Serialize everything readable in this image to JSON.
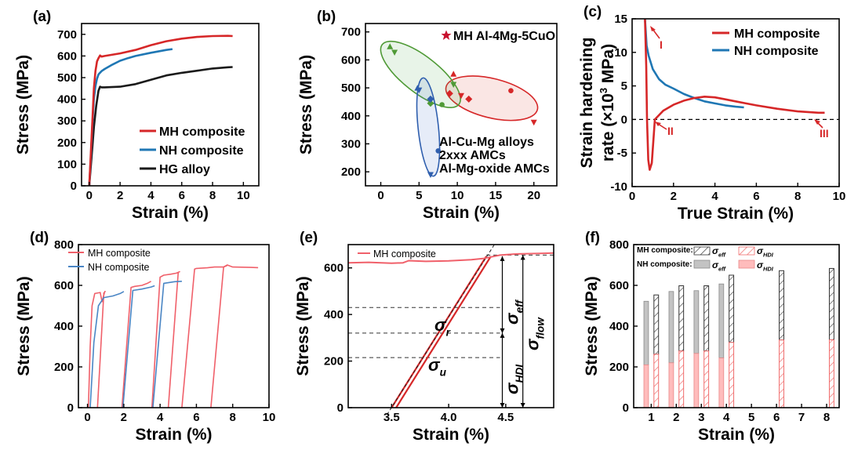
{
  "chart_data": [
    {
      "panel": "(a)",
      "type": "line",
      "xlabel": "Strain (%)",
      "ylabel": "Stress (MPa)",
      "xlim": [
        -0.5,
        11
      ],
      "ylim": [
        0,
        750
      ],
      "xticks": [
        "0",
        "2",
        "4",
        "6",
        "8",
        "10"
      ],
      "yticks": [
        "0",
        "100",
        "200",
        "300",
        "400",
        "500",
        "600",
        "700"
      ],
      "legend_position": "lower-right",
      "series": [
        {
          "name": "MH composite",
          "color": "#d62728",
          "x": [
            0,
            0.1,
            0.2,
            0.3,
            0.4,
            0.5,
            0.6,
            0.7,
            0.8,
            1.0,
            2,
            3,
            4,
            5,
            6,
            7,
            8,
            9,
            9.3
          ],
          "y": [
            0,
            150,
            300,
            450,
            530,
            575,
            590,
            602,
            597,
            600,
            612,
            628,
            650,
            668,
            680,
            688,
            692,
            693,
            692
          ]
        },
        {
          "name": "NH composite",
          "color": "#1f77b4",
          "x": [
            0,
            0.1,
            0.2,
            0.3,
            0.4,
            0.5,
            0.6,
            0.8,
            1.0,
            1.5,
            2.0,
            2.5,
            3,
            4,
            5,
            5.4
          ],
          "y": [
            0,
            130,
            280,
            400,
            460,
            495,
            515,
            530,
            540,
            560,
            578,
            590,
            600,
            615,
            628,
            632
          ]
        },
        {
          "name": "HG alloy",
          "color": "#1a1a1a",
          "x": [
            0,
            0.1,
            0.2,
            0.3,
            0.45,
            0.6,
            0.7,
            0.8,
            1.0,
            2,
            3,
            4,
            5,
            6,
            7,
            8,
            9,
            9.3
          ],
          "y": [
            0,
            90,
            180,
            270,
            370,
            440,
            458,
            455,
            455,
            458,
            470,
            490,
            510,
            522,
            532,
            542,
            548,
            549
          ]
        }
      ]
    },
    {
      "panel": "(b)",
      "type": "scatter",
      "xlabel": "Strain (%)",
      "ylabel": "Stress (MPa)",
      "xlim": [
        -2,
        23
      ],
      "ylim": [
        150,
        730
      ],
      "xticks": [
        "0",
        "5",
        "10",
        "15",
        "20"
      ],
      "yticks": [
        "200",
        "300",
        "400",
        "500",
        "600",
        "700"
      ],
      "star_label": "MH Al-4Mg-5CuO",
      "group_labels": [
        {
          "text": "Al-Cu-Mg alloys",
          "color": "#d62728"
        },
        {
          "text": "2xxx AMCs",
          "color": "#4f9a36"
        },
        {
          "text": "Al-Mg-oxide AMCs",
          "color": "#2f5fae"
        }
      ],
      "groups": [
        {
          "name": "Al-Cu-Mg alloys",
          "color": "#d62728",
          "points": [
            [
              9.5,
              550
            ],
            [
              10.5,
              470
            ],
            [
              11.5,
              460
            ],
            [
              17,
              490
            ],
            [
              20,
              375
            ],
            [
              9,
              480
            ]
          ]
        },
        {
          "name": "2xxx AMCs",
          "color": "#4f9a36",
          "points": [
            [
              1.2,
              648
            ],
            [
              1.8,
              625
            ],
            [
              6.5,
              445
            ],
            [
              8,
              440
            ],
            [
              9.5,
              510
            ]
          ]
        },
        {
          "name": "Al-Mg-oxide AMCs",
          "color": "#2f5fae",
          "points": [
            [
              4.8,
              500
            ],
            [
              5,
              490
            ],
            [
              6.5,
              460
            ],
            [
              7.5,
              275
            ],
            [
              6.5,
              188
            ]
          ]
        }
      ]
    },
    {
      "panel": "(c)",
      "type": "line",
      "xlabel": "True Strain (%)",
      "ylabel": "Strain hardening rate (×10³ MPa)",
      "ylabel_line1": "Strain hardening",
      "ylabel_line2": "rate (×10",
      "ylabel_sup": "3",
      "ylabel_tail": " MPa)",
      "xlim": [
        0,
        10
      ],
      "ylim": [
        -10,
        15
      ],
      "xticks": [
        "0",
        "2",
        "4",
        "6",
        "8",
        "10"
      ],
      "yticks": [
        "-10",
        "-5",
        "0",
        "5",
        "10",
        "15"
      ],
      "legend_position": "top-right",
      "annotations": [
        "I",
        "II",
        "III"
      ],
      "series": [
        {
          "name": "MH composite",
          "color": "#d62728",
          "x": [
            0.62,
            0.68,
            0.72,
            0.78,
            0.85,
            0.95,
            1.1,
            1.5,
            2,
            2.5,
            3,
            3.5,
            4,
            4.5,
            5,
            5.5,
            6,
            7,
            8,
            9,
            9.3
          ],
          "y": [
            15,
            8,
            0,
            -6,
            -7.5,
            -6.5,
            0,
            1.3,
            2.2,
            2.8,
            3.2,
            3.4,
            3.3,
            3.0,
            2.7,
            2.4,
            2.1,
            1.6,
            1.2,
            1.0,
            1.0
          ]
        },
        {
          "name": "NH composite",
          "color": "#1f77b4",
          "x": [
            0.62,
            0.7,
            0.8,
            1.0,
            1.3,
            1.6,
            2.0,
            2.5,
            3,
            3.5,
            4,
            4.5,
            5,
            5.4
          ],
          "y": [
            15,
            11,
            9.5,
            7.5,
            6,
            5.2,
            4.6,
            3.8,
            3.2,
            2.7,
            2.4,
            2.1,
            1.9,
            1.8
          ]
        }
      ]
    },
    {
      "panel": "(d)",
      "type": "line",
      "xlabel": "Strain (%)",
      "ylabel": "Stress (MPa)",
      "xlim": [
        -0.5,
        10
      ],
      "ylim": [
        0,
        800
      ],
      "xticks": [
        "0",
        "2",
        "4",
        "6",
        "8",
        "10"
      ],
      "yticks": [
        "0",
        "200",
        "400",
        "600",
        "800"
      ],
      "legend_position": "top-left",
      "series": [
        {
          "name": "MH composite",
          "color": "#f0606a",
          "segments": [
            [
              [
                0.05,
                0
              ],
              [
                0.15,
                300
              ],
              [
                0.25,
                500
              ],
              [
                0.4,
                560
              ],
              [
                0.7,
                565
              ],
              [
                0.8,
                520
              ],
              [
                0.95,
                570
              ],
              [
                1.0,
                570
              ]
            ],
            [
              [
                0.55,
                0
              ],
              [
                0.9,
                565
              ]
            ],
            [
              [
                1.9,
                0
              ],
              [
                2.4,
                590
              ],
              [
                2.6,
                595
              ],
              [
                3.0,
                600
              ],
              [
                3.3,
                610
              ],
              [
                3.5,
                620
              ]
            ],
            [
              [
                3.55,
                0
              ],
              [
                4.0,
                640
              ],
              [
                4.2,
                650
              ],
              [
                4.6,
                655
              ],
              [
                4.9,
                660
              ],
              [
                5.1,
                668
              ]
            ],
            [
              [
                4.45,
                0
              ],
              [
                5.0,
                665
              ]
            ],
            [
              [
                5.2,
                0
              ],
              [
                5.9,
                680
              ],
              [
                6.0,
                683
              ],
              [
                6.6,
                686
              ],
              [
                7.0,
                690
              ],
              [
                7.5,
                690
              ],
              [
                7.7,
                698
              ]
            ],
            [
              [
                6.8,
                0
              ],
              [
                7.5,
                690
              ],
              [
                7.7,
                700
              ],
              [
                8.0,
                690
              ],
              [
                9.0,
                688
              ],
              [
                9.4,
                687
              ]
            ]
          ]
        },
        {
          "name": "NH composite",
          "color": "#4a86c5",
          "segments": [
            [
              [
                0.15,
                0
              ],
              [
                0.35,
                320
              ],
              [
                0.6,
                500
              ],
              [
                0.9,
                540
              ],
              [
                1.4,
                548
              ],
              [
                1.8,
                560
              ],
              [
                2.0,
                570
              ]
            ],
            [
              [
                1.95,
                0
              ],
              [
                2.5,
                575
              ],
              [
                3.0,
                582
              ],
              [
                3.5,
                592
              ],
              [
                3.7,
                598
              ]
            ],
            [
              [
                3.6,
                0
              ],
              [
                4.2,
                610
              ],
              [
                4.8,
                618
              ],
              [
                5.2,
                620
              ]
            ]
          ]
        }
      ]
    },
    {
      "panel": "(e)",
      "type": "line",
      "xlabel": "Strain (%)",
      "ylabel": "Stress (MPa)",
      "xlim": [
        3.12,
        4.92
      ],
      "ylim": [
        0,
        700
      ],
      "xticks": [
        "3.5",
        "4.0",
        "4.5"
      ],
      "yticks": [
        "0",
        "200",
        "400",
        "600"
      ],
      "legend_position": "top-left",
      "series": [
        {
          "name": "MH composite",
          "color": "#f0606a",
          "x": [
            3.12,
            3.3,
            3.5,
            3.6,
            3.65,
            3.8,
            4.0,
            4.2,
            4.3,
            4.45,
            4.6,
            4.8,
            4.92
          ],
          "y": [
            622,
            624,
            620,
            622,
            631,
            628,
            630,
            635,
            640,
            655,
            660,
            662,
            664
          ]
        }
      ],
      "unload_line": {
        "x": [
          3.5,
          4.33
        ],
        "y": [
          0,
          650
        ]
      },
      "reload_line": {
        "x": [
          3.54,
          4.37
        ],
        "y": [
          0,
          650
        ]
      },
      "levels": [
        {
          "name": "sigma_r",
          "value": 430
        },
        {
          "name": "sigma_b",
          "value": 320
        },
        {
          "name": "sigma_u",
          "value": 215
        }
      ],
      "labels": {
        "sigma_r_base": "σ",
        "sigma_r_sub": "r",
        "sigma_u_base": "σ",
        "sigma_u_sub": "u",
        "sigma_eff_base": "σ",
        "sigma_eff_sub": "eff",
        "sigma_hdi_base": "σ",
        "sigma_hdi_sub": "HDI",
        "sigma_flow_base": "σ",
        "sigma_flow_sub": "flow"
      }
    },
    {
      "panel": "(f)",
      "type": "bar",
      "xlabel": "Strain (%)",
      "ylabel": "Stress (MPa)",
      "xlim": [
        0.3,
        8.5
      ],
      "ylim": [
        0,
        800
      ],
      "xticks": [
        "1",
        "2",
        "3",
        "4",
        "5",
        "6",
        "7",
        "8"
      ],
      "yticks": [
        "0",
        "200",
        "400",
        "600",
        "800"
      ],
      "legend": {
        "row1": "MH composite:",
        "row2": "NH composite:",
        "eff": "eff",
        "hdi": "HDI",
        "sigma": "σ"
      },
      "colors": {
        "nh_eff": "#c3c3c3",
        "nh_hdi": "#ffbcbc",
        "mh_hdi_hatch": "#f06c6c"
      },
      "bars": [
        {
          "x": 0.8,
          "kind": "NH",
          "total": 522,
          "hdi": 210
        },
        {
          "x": 1.2,
          "kind": "MH",
          "total": 553,
          "hdi": 262
        },
        {
          "x": 1.8,
          "kind": "NH",
          "total": 570,
          "hdi": 220
        },
        {
          "x": 2.2,
          "kind": "MH",
          "total": 598,
          "hdi": 278
        },
        {
          "x": 2.8,
          "kind": "NH",
          "total": 574,
          "hdi": 266
        },
        {
          "x": 3.2,
          "kind": "MH",
          "total": 598,
          "hdi": 278
        },
        {
          "x": 3.8,
          "kind": "NH",
          "total": 607,
          "hdi": 244
        },
        {
          "x": 4.2,
          "kind": "MH",
          "total": 650,
          "hdi": 320
        },
        {
          "x": 6.2,
          "kind": "MH",
          "total": 672,
          "hdi": 332
        },
        {
          "x": 8.2,
          "kind": "MH",
          "total": 683,
          "hdi": 333
        }
      ]
    }
  ]
}
